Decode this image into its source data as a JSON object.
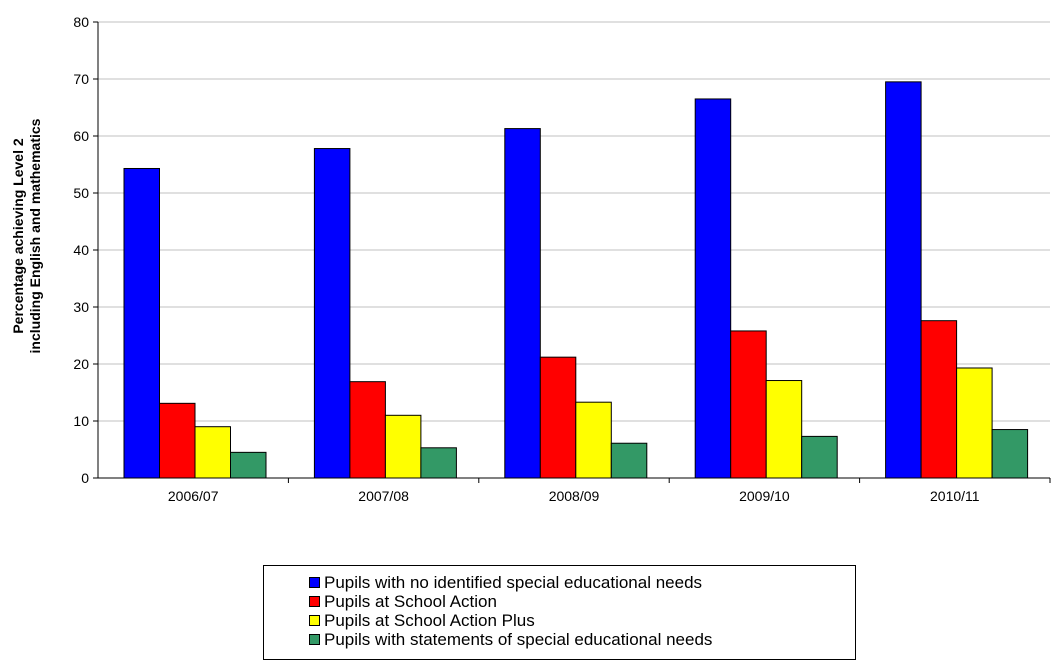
{
  "chart_data": {
    "type": "bar",
    "categories": [
      "2006/07",
      "2007/08",
      "2008/09",
      "2009/10",
      "2010/11"
    ],
    "series": [
      {
        "name": "Pupils with no identified special educational needs",
        "color": "#0000ff",
        "values": [
          54.3,
          57.8,
          61.3,
          66.5,
          69.5
        ]
      },
      {
        "name": "Pupils at School Action",
        "color": "#ff0000",
        "values": [
          13.1,
          16.9,
          21.2,
          25.8,
          27.6
        ]
      },
      {
        "name": "Pupils at School Action Plus",
        "color": "#ffff00",
        "values": [
          9.0,
          11.0,
          13.3,
          17.1,
          19.3
        ]
      },
      {
        "name": "Pupils with statements of special educational needs",
        "color": "#339966",
        "values": [
          4.5,
          5.3,
          6.1,
          7.3,
          8.5
        ]
      }
    ],
    "ylabel_line1": "Percentage achieving Level 2",
    "ylabel_line2": "including English and mathematics",
    "ylim": [
      0,
      80
    ],
    "yticks": [
      0,
      10,
      20,
      30,
      40,
      50,
      60,
      70,
      80
    ],
    "grid": true,
    "legend_position": "bottom"
  }
}
